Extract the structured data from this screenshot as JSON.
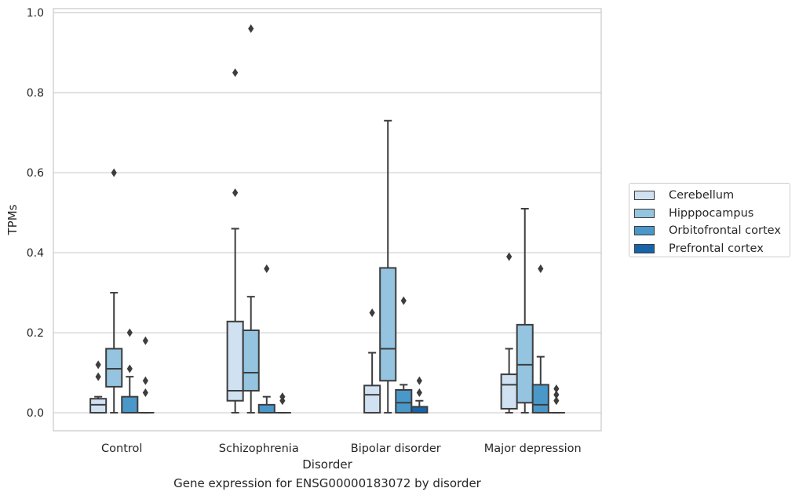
{
  "caption": "Gene expression for ENSG00000183072 by disorder",
  "chart_data": {
    "type": "box",
    "title": "",
    "xlabel": "Disorder",
    "ylabel": "TPMs",
    "ylim": [
      -0.045,
      1.01
    ],
    "yticks": [
      "0.0",
      "0.2",
      "0.4",
      "0.6",
      "0.8",
      "1.0"
    ],
    "grid": "horizontal",
    "legend_position": "right",
    "categories": [
      "Control",
      "Schizophrenia",
      "Bipolar disorder",
      "Major depression"
    ],
    "series": [
      {
        "name": "Cerebellum",
        "color": "#d0e1f2",
        "boxes": [
          {
            "whisker_low": 0.0,
            "q1": 0.0,
            "median": 0.02,
            "q3": 0.035,
            "whisker_high": 0.04,
            "outliers": [
              0.09,
              0.12
            ]
          },
          {
            "whisker_low": 0.0,
            "q1": 0.03,
            "median": 0.055,
            "q3": 0.228,
            "whisker_high": 0.46,
            "outliers": [
              0.55,
              0.85
            ]
          },
          {
            "whisker_low": 0.0,
            "q1": 0.0,
            "median": 0.045,
            "q3": 0.068,
            "whisker_high": 0.15,
            "outliers": [
              0.25
            ]
          },
          {
            "whisker_low": 0.0,
            "q1": 0.01,
            "median": 0.07,
            "q3": 0.096,
            "whisker_high": 0.16,
            "outliers": [
              0.39
            ]
          }
        ]
      },
      {
        "name": "Hipppocampus",
        "color": "#94c4df",
        "boxes": [
          {
            "whisker_low": 0.0,
            "q1": 0.065,
            "median": 0.11,
            "q3": 0.16,
            "whisker_high": 0.3,
            "outliers": [
              0.6
            ]
          },
          {
            "whisker_low": 0.0,
            "q1": 0.055,
            "median": 0.1,
            "q3": 0.206,
            "whisker_high": 0.29,
            "outliers": [
              0.96
            ]
          },
          {
            "whisker_low": 0.0,
            "q1": 0.08,
            "median": 0.16,
            "q3": 0.362,
            "whisker_high": 0.73,
            "outliers": []
          },
          {
            "whisker_low": 0.0,
            "q1": 0.025,
            "median": 0.12,
            "q3": 0.22,
            "whisker_high": 0.51,
            "outliers": []
          }
        ]
      },
      {
        "name": "Orbitofrontal cortex",
        "color": "#4a98c9",
        "boxes": [
          {
            "whisker_low": 0.0,
            "q1": 0.0,
            "median": 0.0,
            "q3": 0.04,
            "whisker_high": 0.09,
            "outliers": [
              0.11,
              0.2
            ]
          },
          {
            "whisker_low": 0.0,
            "q1": 0.0,
            "median": 0.0,
            "q3": 0.02,
            "whisker_high": 0.04,
            "outliers": [
              0.36
            ]
          },
          {
            "whisker_low": 0.0,
            "q1": 0.0,
            "median": 0.025,
            "q3": 0.057,
            "whisker_high": 0.07,
            "outliers": [
              0.28
            ]
          },
          {
            "whisker_low": 0.0,
            "q1": 0.0,
            "median": 0.02,
            "q3": 0.07,
            "whisker_high": 0.14,
            "outliers": [
              0.36
            ]
          }
        ]
      },
      {
        "name": "Prefrontal cortex",
        "color": "#1764ab",
        "boxes": [
          {
            "whisker_low": 0.0,
            "q1": 0.0,
            "median": 0.0,
            "q3": 0.0,
            "whisker_high": 0.0,
            "outliers": [
              0.05,
              0.08,
              0.18
            ]
          },
          {
            "whisker_low": 0.0,
            "q1": 0.0,
            "median": 0.0,
            "q3": 0.0,
            "whisker_high": 0.0,
            "outliers": [
              0.03,
              0.04
            ]
          },
          {
            "whisker_low": 0.0,
            "q1": 0.0,
            "median": 0.0,
            "q3": 0.015,
            "whisker_high": 0.03,
            "outliers": [
              0.05,
              0.08
            ]
          },
          {
            "whisker_low": 0.0,
            "q1": 0.0,
            "median": 0.0,
            "q3": 0.0,
            "whisker_high": 0.0,
            "outliers": [
              0.03,
              0.045,
              0.06
            ]
          }
        ]
      }
    ]
  }
}
